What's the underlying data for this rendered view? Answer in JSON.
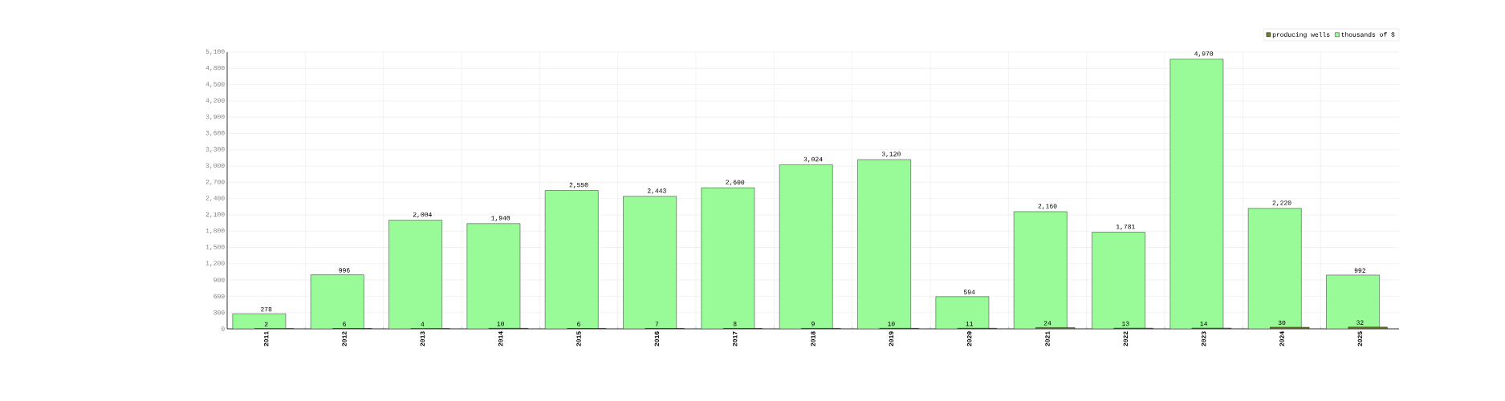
{
  "chart_data": {
    "type": "bar",
    "categories": [
      "2011",
      "2012",
      "2013",
      "2014",
      "2015",
      "2016",
      "2017",
      "2018",
      "2019",
      "2020",
      "2021",
      "2022",
      "2023",
      "2024",
      "2025"
    ],
    "series": [
      {
        "name": "producing wells",
        "color": "#6b7a2e",
        "values": [
          2,
          6,
          4,
          10,
          6,
          7,
          8,
          9,
          10,
          11,
          24,
          13,
          14,
          30,
          32
        ],
        "value_labels": [
          "2",
          "6",
          "4",
          "10",
          "6",
          "7",
          "8",
          "9",
          "10",
          "11",
          "24",
          "13",
          "14",
          "30",
          "32"
        ]
      },
      {
        "name": "thousands of $",
        "color": "#98fb98",
        "values": [
          278,
          996,
          2004,
          1940,
          2550,
          2443,
          2600,
          3024,
          3120,
          594,
          2160,
          1781,
          4970,
          2220,
          992
        ],
        "value_labels": [
          "278",
          "996",
          "2,004",
          "1,940",
          "2,550",
          "2,443",
          "2,600",
          "3,024",
          "3,120",
          "594",
          "2,160",
          "1,781",
          "4,970",
          "2,220",
          "992"
        ]
      }
    ],
    "ylim": [
      0,
      5100
    ],
    "yticks": [
      0,
      300,
      600,
      900,
      {
        "value": 1200,
        "label": "1,200"
      },
      {
        "value": 1500,
        "label": "1,500"
      },
      {
        "value": 1800,
        "label": "1,800"
      },
      {
        "value": 2100,
        "label": "2,100"
      },
      {
        "value": 2400,
        "label": "2,400"
      },
      {
        "value": 2700,
        "label": "2,700"
      },
      {
        "value": 3000,
        "label": "3,000"
      },
      {
        "value": 3300,
        "label": "3,300"
      },
      {
        "value": 3600,
        "label": "3,600"
      },
      {
        "value": 3900,
        "label": "3,900"
      },
      {
        "value": 4200,
        "label": "4,200"
      },
      {
        "value": 4500,
        "label": "4,500"
      },
      {
        "value": 4800,
        "label": "4,800"
      },
      {
        "value": 5100,
        "label": "5,100"
      }
    ],
    "grid": true,
    "legend": "top right"
  }
}
